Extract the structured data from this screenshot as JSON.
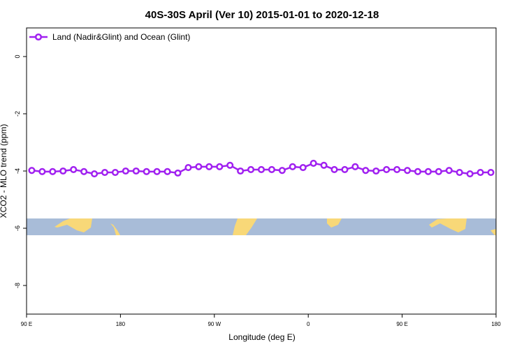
{
  "chart_data": {
    "type": "line",
    "title": "40S-30S April (Ver 10)   2015-01-01 to 2020-12-18",
    "x_label": "Longitude (deg E)",
    "y_label": "XCO2 - MLO trend (ppm)",
    "x": [
      95,
      105,
      115,
      125,
      135,
      145,
      155,
      165,
      175,
      185,
      195,
      205,
      215,
      225,
      235,
      245,
      255,
      265,
      275,
      285,
      295,
      305,
      315,
      325,
      335,
      345,
      355,
      365,
      375,
      385,
      395,
      405,
      415,
      425,
      435,
      445,
      455,
      465,
      475,
      485,
      495,
      505,
      515,
      525,
      535
    ],
    "series": [
      {
        "name": "Land (Nadir&Glint) and Ocean (Glint)",
        "color": "#a020f0",
        "values": [
          -3.98,
          -4.02,
          -4.02,
          -4.0,
          -3.95,
          -4.02,
          -4.1,
          -4.05,
          -4.05,
          -4.0,
          -4.0,
          -4.02,
          -4.02,
          -4.02,
          -4.07,
          -3.88,
          -3.85,
          -3.85,
          -3.85,
          -3.8,
          -4.0,
          -3.95,
          -3.95,
          -3.95,
          -3.98,
          -3.85,
          -3.88,
          -3.73,
          -3.8,
          -3.95,
          -3.95,
          -3.85,
          -3.98,
          -4.0,
          -3.95,
          -3.95,
          -3.98,
          -4.02,
          -4.02,
          -4.02,
          -3.98,
          -4.05,
          -4.1,
          -4.05,
          -4.05
        ]
      }
    ],
    "xlim": [
      90,
      540
    ],
    "xticks": [
      {
        "value": 90,
        "label": "90 E"
      },
      180,
      {
        "value": 270,
        "label": "90 W"
      },
      {
        "value": 360,
        "label": "0"
      },
      {
        "value": 450,
        "label": "90 E"
      },
      {
        "value": 540,
        "label": "180"
      }
    ],
    "ylim": [
      -9,
      1
    ],
    "yticks": [
      0,
      -2,
      -4,
      -6,
      -8
    ],
    "legend": "top-left"
  }
}
